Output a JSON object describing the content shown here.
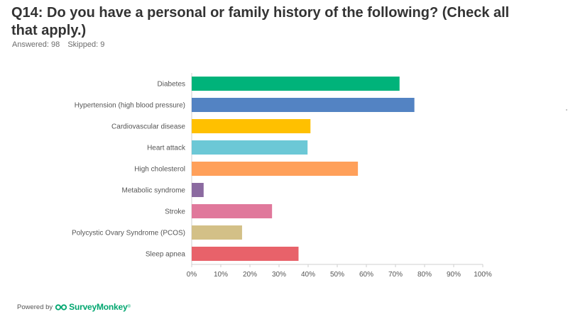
{
  "question": {
    "title": "Q14: Do you have a personal or family history of the following? (Check all that apply.)",
    "answered_label": "Answered: 98",
    "skipped_label": "Skipped: 9"
  },
  "footer": {
    "powered_by": "Powered by",
    "brand": "SurveyMonkey",
    "trademark": "®"
  },
  "chart_data": {
    "type": "bar",
    "orientation": "horizontal",
    "categories": [
      "Diabetes",
      "Hypertension (high blood pressure)",
      "Cardiovascular disease",
      "Heart attack",
      "High cholesterol",
      "Metabolic syndrome",
      "Stroke",
      "Polycystic Ovary Syndrome (PCOS)",
      "Sleep apnea"
    ],
    "values": [
      71.4,
      76.5,
      40.8,
      39.8,
      57.1,
      4.1,
      27.6,
      17.3,
      36.7
    ],
    "colors": [
      "#00b37a",
      "#5383c3",
      "#ffc000",
      "#6cc8d6",
      "#ffa05a",
      "#8b6aa0",
      "#e0789b",
      "#d3c087",
      "#e8626a"
    ],
    "xlim": [
      0,
      100
    ],
    "xticks": [
      0,
      10,
      20,
      30,
      40,
      50,
      60,
      70,
      80,
      90,
      100
    ],
    "tick_suffix": "%",
    "grid": false,
    "legend": "none"
  },
  "colors": {
    "axis": "#cfcfcf",
    "tick_label": "#555555",
    "category_label": "#555555",
    "brand_green": "#00a66f"
  }
}
